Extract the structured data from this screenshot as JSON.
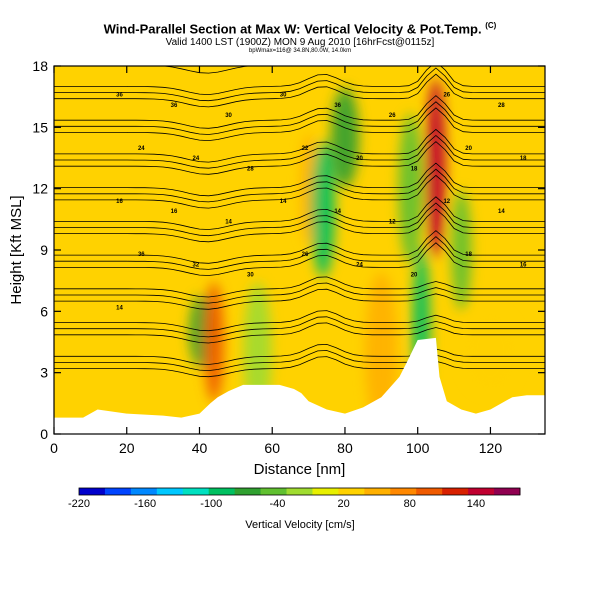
{
  "header": {
    "title": "Wind-Parallel Section at Max W: Vertical Velocity & Pot.Temp.",
    "copyright": "(C)",
    "valid_line": "Valid 1400 LST (1900Z) MON 9 Aug 2010 [16hrFcst@0115z]",
    "sub_line": "bpWmax=116@ 34.8N,80.0W, 14.0km"
  },
  "colors": {
    "background_fill": "#ffd200",
    "colorbar": [
      "#0000cc",
      "#0044ff",
      "#0088ff",
      "#00c8ff",
      "#00e0c0",
      "#00c060",
      "#30a030",
      "#60c030",
      "#a0dc30",
      "#e8f000",
      "#ffd200",
      "#ffb000",
      "#ff8800",
      "#f05a00",
      "#d82000",
      "#c00030",
      "#900050"
    ]
  },
  "chart_data": {
    "type": "heatmap",
    "title": "Wind-Parallel Section at Max W: Vertical Velocity & Pot.Temp.",
    "xlabel": "Distance [nm]",
    "ylabel": "Height [Kft MSL]",
    "xlim": [
      0,
      135
    ],
    "ylim": [
      0,
      18
    ],
    "x_ticks": [
      "0",
      "20",
      "40",
      "60",
      "80",
      "100",
      "120"
    ],
    "y_ticks": [
      "0",
      "3",
      "6",
      "9",
      "12",
      "15",
      "18"
    ],
    "terrain": [
      [
        0,
        0.8
      ],
      [
        8,
        0.8
      ],
      [
        12,
        1.2
      ],
      [
        20,
        1.0
      ],
      [
        30,
        0.9
      ],
      [
        35,
        0.8
      ],
      [
        40,
        1.0
      ],
      [
        43,
        1.5
      ],
      [
        45,
        1.8
      ],
      [
        48,
        2.1
      ],
      [
        52,
        2.4
      ],
      [
        62,
        2.4
      ],
      [
        66,
        2.2
      ],
      [
        68,
        2.0
      ],
      [
        70,
        1.6
      ],
      [
        75,
        1.2
      ],
      [
        80,
        1.0
      ],
      [
        85,
        1.3
      ],
      [
        90,
        1.8
      ],
      [
        95,
        2.8
      ],
      [
        97,
        3.5
      ],
      [
        100,
        4.6
      ],
      [
        105,
        4.7
      ],
      [
        106,
        2.8
      ],
      [
        108,
        1.6
      ],
      [
        112,
        1.2
      ],
      [
        116,
        1.0
      ],
      [
        120,
        1.2
      ],
      [
        126,
        1.8
      ],
      [
        130,
        1.9
      ],
      [
        135,
        1.9
      ]
    ],
    "velocity_features": [
      {
        "x": 40.5,
        "y": 5.0,
        "value": -60
      },
      {
        "x": 44,
        "y": 4.5,
        "value": 100
      },
      {
        "x": 56,
        "y": 4.0,
        "value": -20
      },
      {
        "x": 70,
        "y": 12.0,
        "value": 60
      },
      {
        "x": 74,
        "y": 11.0,
        "value": -80
      },
      {
        "x": 80,
        "y": 14.5,
        "value": -60
      },
      {
        "x": 90,
        "y": 4.0,
        "value": 60
      },
      {
        "x": 98,
        "y": 12.0,
        "value": -40
      },
      {
        "x": 101,
        "y": 5.0,
        "value": -100
      },
      {
        "x": 105,
        "y": 13.0,
        "value": 140
      },
      {
        "x": 112,
        "y": 9.0,
        "value": -40
      },
      {
        "x": 120,
        "y": 4.0,
        "value": 20
      }
    ],
    "isentrope_labels": [
      "36",
      "36",
      "30",
      "30",
      "36",
      "26",
      "26",
      "28",
      "24",
      "24",
      "28",
      "22",
      "20",
      "18",
      "20",
      "18",
      "16",
      "16",
      "14",
      "14",
      "14",
      "12",
      "12",
      "14",
      "36",
      "32",
      "30",
      "26",
      "24",
      "20",
      "18",
      "16",
      "14"
    ],
    "colorbar": {
      "label": "Vertical Velocity [cm/s]",
      "range": [
        -220,
        180
      ],
      "ticks": [
        "-220",
        "-160",
        "-100",
        "-40",
        "20",
        "80",
        "140"
      ]
    }
  }
}
